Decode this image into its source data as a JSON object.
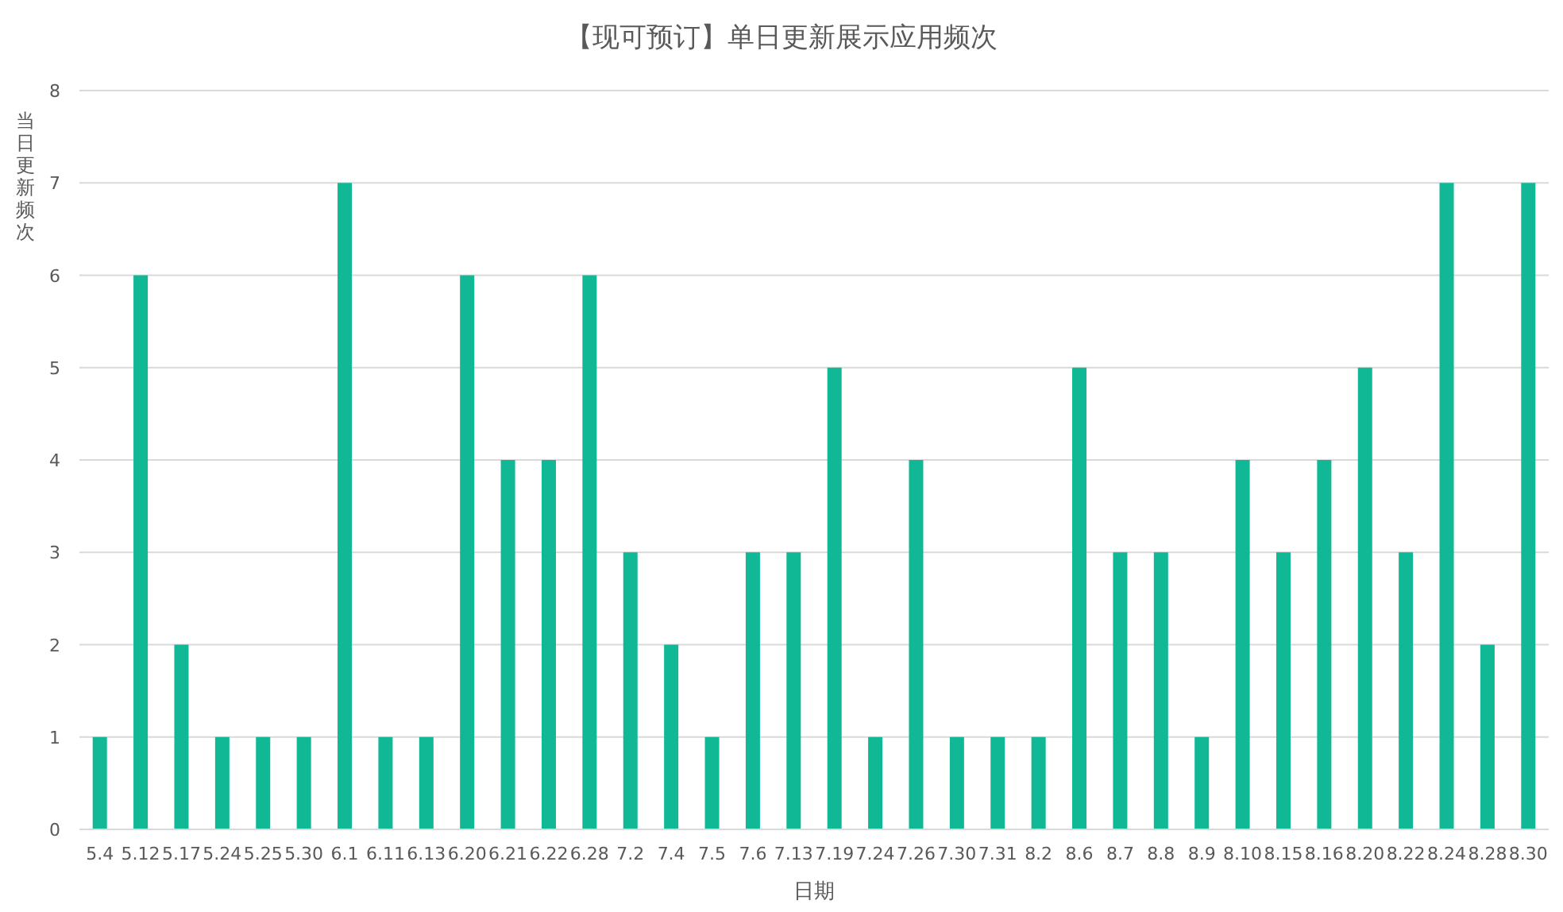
{
  "chart_data": {
    "type": "bar",
    "title": "【现可预订】单日更新展示应用频次",
    "xlabel": "日期",
    "ylabel": "当日更新频次",
    "categories": [
      "5.4",
      "5.12",
      "5.17",
      "5.24",
      "5.25",
      "5.30",
      "6.1",
      "6.11",
      "6.13",
      "6.20",
      "6.21",
      "6.22",
      "6.28",
      "7.2",
      "7.4",
      "7.5",
      "7.6",
      "7.13",
      "7.19",
      "7.24",
      "7.26",
      "7.30",
      "7.31",
      "8.2",
      "8.6",
      "8.7",
      "8.8",
      "8.9",
      "8.10",
      "8.15",
      "8.16",
      "8.20",
      "8.22",
      "8.24",
      "8.28",
      "8.30"
    ],
    "values": [
      1,
      6,
      2,
      1,
      1,
      1,
      7,
      1,
      1,
      6,
      4,
      4,
      6,
      3,
      2,
      1,
      3,
      3,
      5,
      1,
      4,
      1,
      1,
      1,
      5,
      3,
      3,
      1,
      4,
      3,
      4,
      5,
      3,
      7,
      2,
      7
    ],
    "color": "#10b896",
    "ylim": [
      0,
      8
    ],
    "yticks": [
      0,
      1,
      2,
      3,
      4,
      5,
      6,
      7,
      8
    ],
    "grid": "y"
  }
}
